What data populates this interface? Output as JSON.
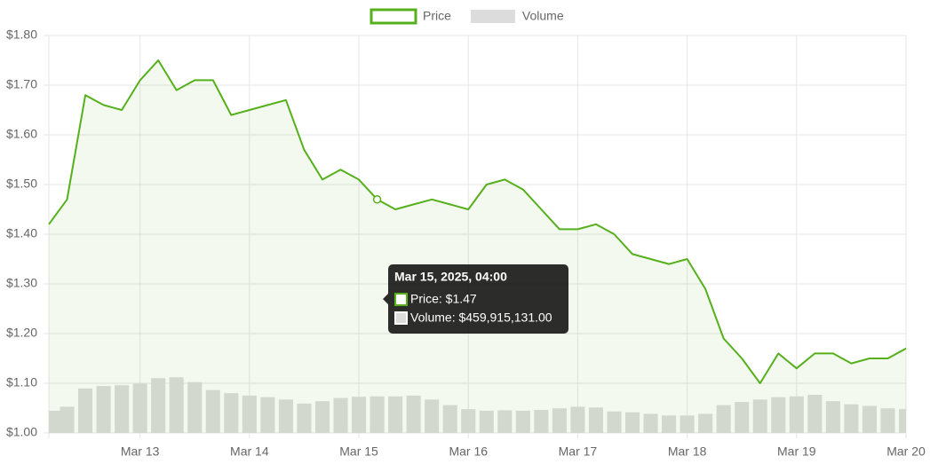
{
  "chart_data": {
    "type": "line",
    "x": [
      "2025-03-12T04:00",
      "2025-03-12T08:00",
      "2025-03-12T12:00",
      "2025-03-12T16:00",
      "2025-03-12T20:00",
      "2025-03-13T00:00",
      "2025-03-13T04:00",
      "2025-03-13T08:00",
      "2025-03-13T12:00",
      "2025-03-13T16:00",
      "2025-03-13T20:00",
      "2025-03-14T00:00",
      "2025-03-14T04:00",
      "2025-03-14T08:00",
      "2025-03-14T12:00",
      "2025-03-14T16:00",
      "2025-03-14T20:00",
      "2025-03-15T00:00",
      "2025-03-15T04:00",
      "2025-03-15T08:00",
      "2025-03-15T12:00",
      "2025-03-15T16:00",
      "2025-03-15T20:00",
      "2025-03-16T00:00",
      "2025-03-16T04:00",
      "2025-03-16T08:00",
      "2025-03-16T12:00",
      "2025-03-16T16:00",
      "2025-03-16T20:00",
      "2025-03-17T00:00",
      "2025-03-17T04:00",
      "2025-03-17T08:00",
      "2025-03-17T12:00",
      "2025-03-17T16:00",
      "2025-03-17T20:00",
      "2025-03-18T00:00",
      "2025-03-18T04:00",
      "2025-03-18T08:00",
      "2025-03-18T12:00",
      "2025-03-18T16:00",
      "2025-03-18T20:00",
      "2025-03-19T00:00",
      "2025-03-19T04:00",
      "2025-03-19T08:00",
      "2025-03-19T12:00",
      "2025-03-19T16:00",
      "2025-03-19T20:00",
      "2025-03-20T00:00"
    ],
    "series": [
      {
        "name": "Price",
        "color": "#55b01c",
        "values": [
          1.42,
          1.47,
          1.68,
          1.66,
          1.65,
          1.71,
          1.75,
          1.69,
          1.71,
          1.71,
          1.64,
          1.65,
          1.66,
          1.67,
          1.57,
          1.51,
          1.53,
          1.51,
          1.47,
          1.45,
          1.46,
          1.47,
          1.46,
          1.45,
          1.5,
          1.51,
          1.49,
          1.45,
          1.41,
          1.41,
          1.42,
          1.4,
          1.36,
          1.35,
          1.34,
          1.35,
          1.29,
          1.19,
          1.15,
          1.1,
          1.16,
          1.13,
          1.16,
          1.16,
          1.14,
          1.15,
          1.15,
          1.17
        ]
      },
      {
        "name": "Volume",
        "color": "#dcdcdc",
        "axis": "y2",
        "values": [
          280000000,
          330000000,
          560000000,
          590000000,
          600000000,
          620000000,
          690000000,
          700000000,
          640000000,
          540000000,
          500000000,
          470000000,
          450000000,
          420000000,
          370000000,
          400000000,
          440000000,
          455000000,
          459915131,
          460000000,
          470000000,
          420000000,
          350000000,
          300000000,
          280000000,
          285000000,
          280000000,
          290000000,
          310000000,
          330000000,
          320000000,
          270000000,
          260000000,
          240000000,
          220000000,
          220000000,
          240000000,
          350000000,
          390000000,
          420000000,
          450000000,
          460000000,
          480000000,
          400000000,
          360000000,
          340000000,
          310000000,
          300000000
        ]
      }
    ],
    "xlim": [
      "2025-03-12T04:00",
      "2025-03-20T00:00"
    ],
    "xticks": [
      {
        "value": "2025-03-13T00:00",
        "label": "Mar 13"
      },
      {
        "value": "2025-03-14T00:00",
        "label": "Mar 14"
      },
      {
        "value": "2025-03-15T00:00",
        "label": "Mar 15"
      },
      {
        "value": "2025-03-16T00:00",
        "label": "Mar 16"
      },
      {
        "value": "2025-03-17T00:00",
        "label": "Mar 17"
      },
      {
        "value": "2025-03-18T00:00",
        "label": "Mar 18"
      },
      {
        "value": "2025-03-19T00:00",
        "label": "Mar 19"
      },
      {
        "value": "2025-03-20T00:00",
        "label": "Mar 20"
      }
    ],
    "ylim": [
      1.0,
      1.8
    ],
    "yticks": [
      {
        "value": 1.0,
        "label": "$1.00"
      },
      {
        "value": 1.1,
        "label": "$1.10"
      },
      {
        "value": 1.2,
        "label": "$1.20"
      },
      {
        "value": 1.3,
        "label": "$1.30"
      },
      {
        "value": 1.4,
        "label": "$1.40"
      },
      {
        "value": 1.5,
        "label": "$1.50"
      },
      {
        "value": 1.6,
        "label": "$1.60"
      },
      {
        "value": 1.7,
        "label": "$1.70"
      },
      {
        "value": 1.8,
        "label": "$1.80"
      }
    ],
    "y2lim": [
      0,
      5000000000
    ],
    "grid": true,
    "legend": "top",
    "tooltip": {
      "index": 18,
      "title": "Mar 15, 2025, 04:00",
      "lines": [
        "Price: $1.47",
        "Volume: $459,915,131.00"
      ]
    }
  }
}
